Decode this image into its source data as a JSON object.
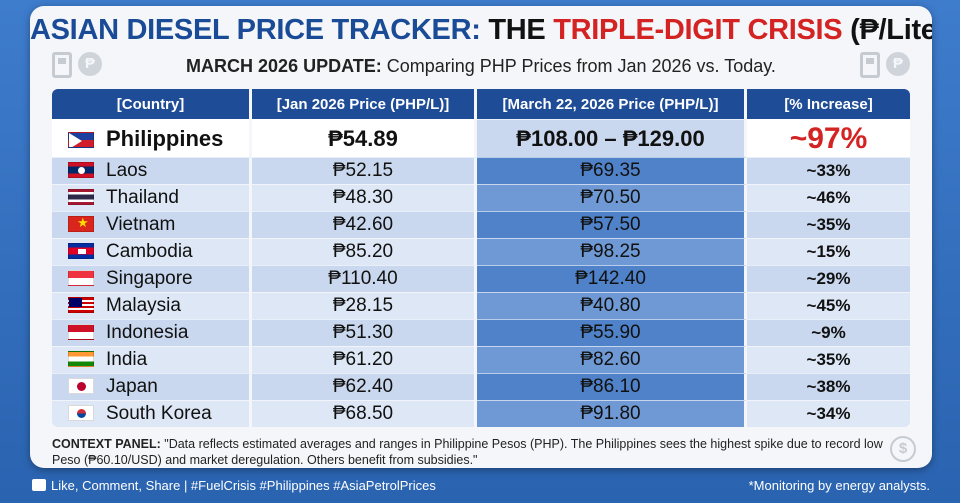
{
  "header": {
    "title_part1": "ASIAN DIESEL PRICE TRACKER:",
    "title_part2": " THE ",
    "title_part3": "TRIPLE-DIGIT CRISIS",
    "title_part4": " (₱/Liter)",
    "subtitle_bold": "MARCH 2026 UPDATE:",
    "subtitle_rest": " Comparing PHP Prices from Jan 2026 vs. Today."
  },
  "table": {
    "columns": [
      "[Country]",
      "[Jan 2026 Price (PHP/L)]",
      "[March 22, 2026 Price (PHP/L)]",
      "[% Increase]"
    ],
    "rows": [
      {
        "flag": "philippines-flag",
        "country": "Philippines",
        "jan": "₱54.89",
        "mar": "₱108.00 – ₱129.00",
        "pct": "~97%"
      },
      {
        "flag": "laos-flag",
        "country": "Laos",
        "jan": "₱52.15",
        "mar": "₱69.35",
        "pct": "~33%"
      },
      {
        "flag": "thailand-flag",
        "country": "Thailand",
        "jan": "₱48.30",
        "mar": "₱70.50",
        "pct": "~46%"
      },
      {
        "flag": "vietnam-flag",
        "country": "Vietnam",
        "jan": "₱42.60",
        "mar": "₱57.50",
        "pct": "~35%"
      },
      {
        "flag": "cambodia-flag",
        "country": "Cambodia",
        "jan": "₱85.20",
        "mar": "₱98.25",
        "pct": "~15%"
      },
      {
        "flag": "singapore-flag",
        "country": "Singapore",
        "jan": "₱110.40",
        "mar": "₱142.40",
        "pct": "~29%"
      },
      {
        "flag": "malaysia-flag",
        "country": "Malaysia",
        "jan": "₱28.15",
        "mar": "₱40.80",
        "pct": "~45%"
      },
      {
        "flag": "indonesia-flag",
        "country": "Indonesia",
        "jan": "₱51.30",
        "mar": "₱55.90",
        "pct": "~9%"
      },
      {
        "flag": "india-flag",
        "country": "India",
        "jan": "₱61.20",
        "mar": "₱82.60",
        "pct": "~35%"
      },
      {
        "flag": "japan-flag",
        "country": "Japan",
        "jan": "₱62.40",
        "mar": "₱86.10",
        "pct": "~38%"
      },
      {
        "flag": "south-korea-flag",
        "country": "South Korea",
        "jan": "₱68.50",
        "mar": "₱91.80",
        "pct": "~34%"
      }
    ]
  },
  "context": {
    "label": "CONTEXT PANEL:",
    "text": " \"Data reflects estimated averages and ranges in Philippine Pesos (PHP). The Philippines sees the highest spike due to record low Peso (₱60.10/USD) and market deregulation. Others benefit from subsidies.\""
  },
  "footer": {
    "left": "Like, Comment, Share | #FuelCrisis #Philippines #AsiaPetrolPrices",
    "right": "*Monitoring by energy analysts."
  },
  "colors": {
    "title_blue": "#1a4b96",
    "title_red": "#d42323",
    "header_bg": "#1e4c96",
    "background": "#2f6ab5"
  }
}
